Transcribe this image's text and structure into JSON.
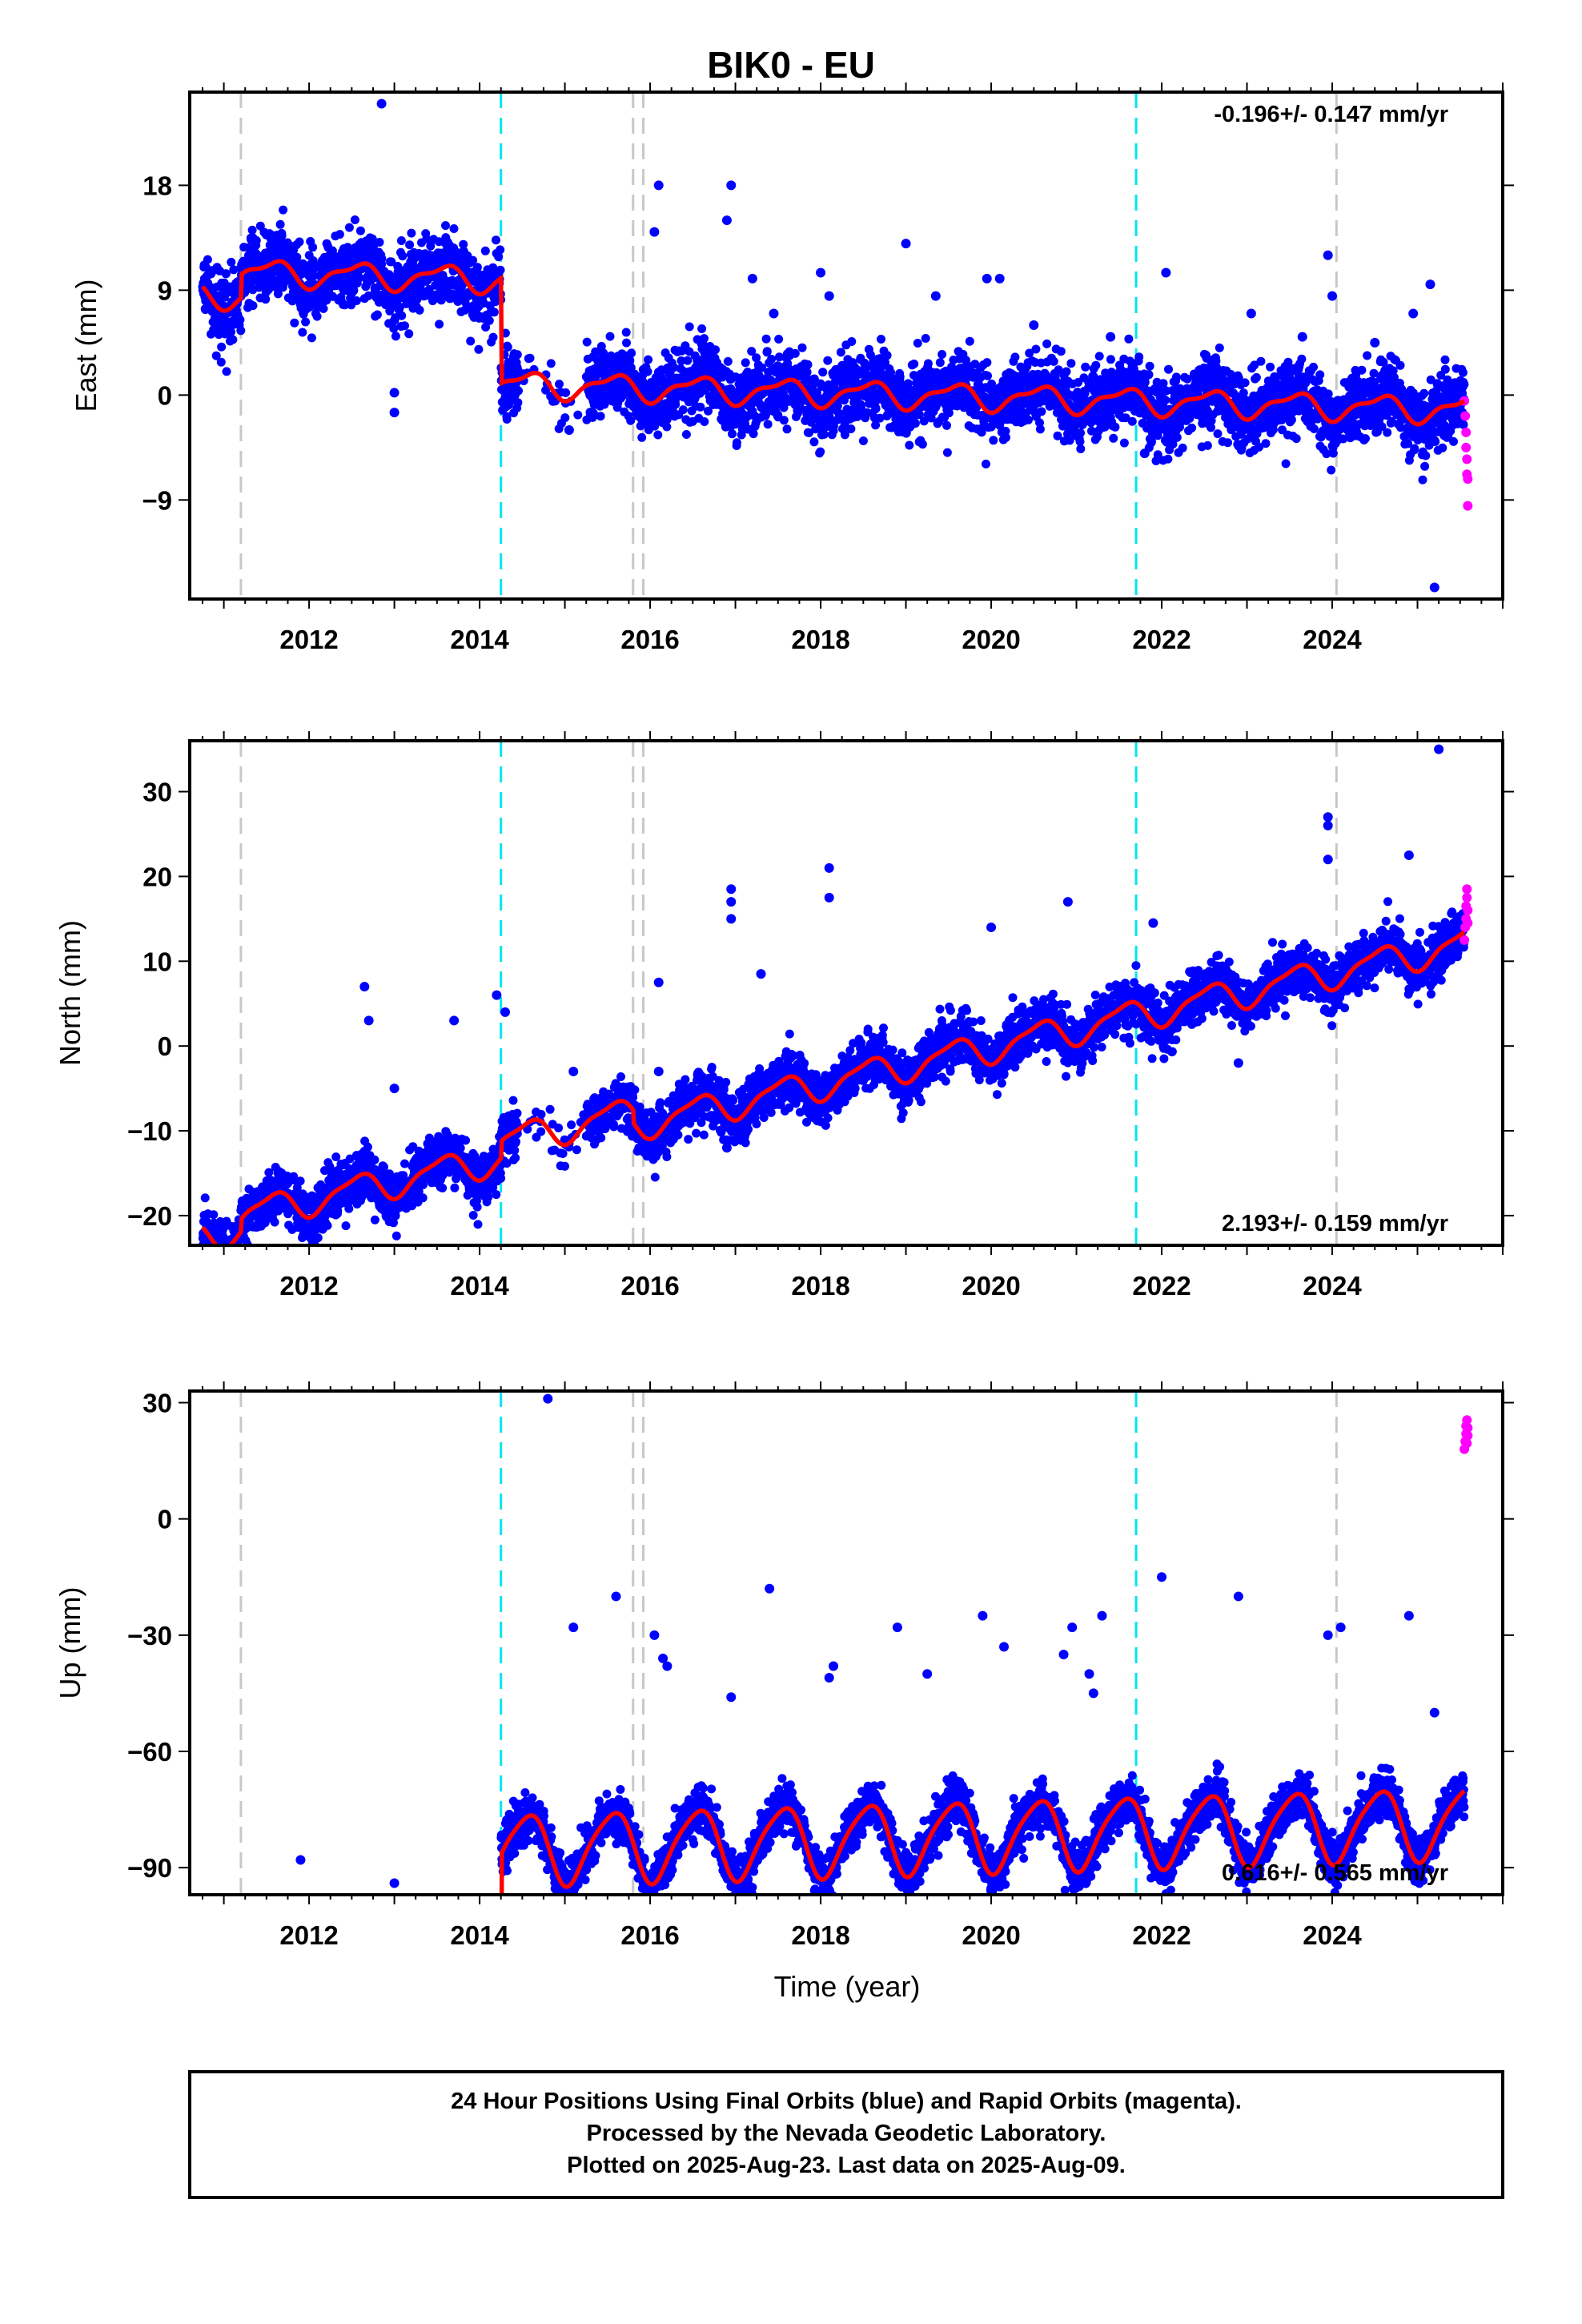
{
  "title": "BIK0 - EU",
  "xlabel": "Time (year)",
  "footer": [
    "24 Hour Positions Using Final Orbits (blue) and Rapid Orbits (magenta).",
    "Processed by the Nevada Geodetic Laboratory.",
    "Plotted on 2025-Aug-23. Last data on 2025-Aug-09."
  ],
  "colors": {
    "final_orbits": "#0000ff",
    "rapid_orbits": "#ff00ff",
    "model": "#ff0000",
    "antenna_change": "#c8c8c8",
    "equipment_change": "#00e5ee"
  },
  "chart_data": [
    {
      "type": "scatter",
      "component": "east",
      "ylabel": "East (mm)",
      "rate_text": "-0.196+/- 0.147 mm/yr",
      "rate_position": "top-right",
      "xlim": [
        2010.6,
        2026.0
      ],
      "ylim": [
        -17.5,
        26
      ],
      "x_ticks": [
        2012,
        2014,
        2016,
        2018,
        2020,
        2022,
        2024
      ],
      "y_ticks": [
        18,
        9,
        0,
        -9
      ],
      "vlines_gray": [
        2011.2,
        2015.8,
        2015.92,
        2024.05
      ],
      "vlines_cyan": [
        2014.25,
        2021.7
      ],
      "offsets": [
        {
          "x": 2011.2,
          "dy": 2.0
        },
        {
          "x": 2014.25,
          "dy": -9.0
        }
      ],
      "model": {
        "t0": 2018.0,
        "base": 0.2,
        "rate": -0.196,
        "amp1": 1.0,
        "amp2": 0.4
      },
      "noise": 1.5,
      "outliers": [
        [
          2012.85,
          25
        ],
        [
          2013.0,
          -1.5
        ],
        [
          2013.0,
          0.2
        ],
        [
          2014.5,
          1.8
        ],
        [
          2015.05,
          -3
        ],
        [
          2016.1,
          18
        ],
        [
          2016.05,
          14
        ],
        [
          2016.95,
          18
        ],
        [
          2016.9,
          15
        ],
        [
          2017.2,
          10
        ],
        [
          2017.45,
          7
        ],
        [
          2018.0,
          10.5
        ],
        [
          2018.1,
          8.5
        ],
        [
          2019.0,
          13
        ],
        [
          2019.35,
          8.5
        ],
        [
          2019.95,
          10
        ],
        [
          2020.1,
          10
        ],
        [
          2020.5,
          6
        ],
        [
          2021.4,
          5
        ],
        [
          2022.05,
          10.5
        ],
        [
          2021.8,
          -5
        ],
        [
          2023.05,
          7
        ],
        [
          2023.65,
          5
        ],
        [
          2023.95,
          12
        ],
        [
          2024.0,
          8.5
        ],
        [
          2024.95,
          7
        ],
        [
          2025.15,
          9.5
        ],
        [
          2025.2,
          -16.5
        ],
        [
          2024.5,
          4.5
        ]
      ],
      "rapid_points": [
        [
          2025.55,
          -0.5
        ],
        [
          2025.56,
          -1.8
        ],
        [
          2025.57,
          -3.2
        ],
        [
          2025.57,
          -4.5
        ],
        [
          2025.58,
          -5.5
        ],
        [
          2025.58,
          -6.8
        ],
        [
          2025.59,
          -7.2
        ],
        [
          2025.59,
          -9.5
        ]
      ]
    },
    {
      "type": "scatter",
      "component": "north",
      "ylabel": "North (mm)",
      "rate_text": "2.193+/- 0.159 mm/yr",
      "rate_position": "bottom-right",
      "xlim": [
        2010.6,
        2026.0
      ],
      "ylim": [
        -23.5,
        36
      ],
      "x_ticks": [
        2012,
        2014,
        2016,
        2018,
        2020,
        2022,
        2024
      ],
      "y_ticks": [
        30,
        20,
        10,
        0,
        -10,
        -20
      ],
      "vlines_gray": [
        2011.2,
        2015.8,
        2015.92,
        2024.05
      ],
      "vlines_cyan": [
        2014.25,
        2021.7
      ],
      "offsets": [
        {
          "x": 2011.2,
          "dy": 1.5
        },
        {
          "x": 2014.25,
          "dy": 2.0
        },
        {
          "x": 2015.8,
          "dy": -1.5
        }
      ],
      "model": {
        "t0": 2018.0,
        "base": -4.5,
        "rate": 2.193,
        "amp1": 1.7,
        "amp2": 0.5
      },
      "noise": 1.5,
      "outliers": [
        [
          2012.65,
          7
        ],
        [
          2012.7,
          3
        ],
        [
          2013.0,
          -5
        ],
        [
          2014.2,
          6
        ],
        [
          2014.3,
          4
        ],
        [
          2013.7,
          3
        ],
        [
          2015.1,
          -3
        ],
        [
          2016.1,
          7.5
        ],
        [
          2016.1,
          -3
        ],
        [
          2016.95,
          18.5
        ],
        [
          2016.95,
          17
        ],
        [
          2016.95,
          15
        ],
        [
          2016.9,
          -12
        ],
        [
          2017.3,
          8.5
        ],
        [
          2018.1,
          21
        ],
        [
          2018.1,
          17.5
        ],
        [
          2020.0,
          14
        ],
        [
          2020.9,
          17
        ],
        [
          2021.9,
          14.5
        ],
        [
          2022.9,
          -2
        ],
        [
          2023.95,
          27
        ],
        [
          2023.95,
          26
        ],
        [
          2023.95,
          22
        ],
        [
          2023.95,
          4
        ],
        [
          2024.9,
          22.5
        ],
        [
          2025.25,
          35
        ]
      ],
      "rapid_points": [
        [
          2025.55,
          12.5
        ],
        [
          2025.56,
          14
        ],
        [
          2025.57,
          15
        ],
        [
          2025.57,
          16.5
        ],
        [
          2025.58,
          17.5
        ],
        [
          2025.58,
          18.5
        ],
        [
          2025.59,
          14.5
        ],
        [
          2025.59,
          16
        ]
      ]
    },
    {
      "type": "scatter",
      "component": "up",
      "ylabel": "Up (mm)",
      "rate_text": "0.616+/- 0.565 mm/yr",
      "rate_position": "bottom-right",
      "xlim": [
        2010.6,
        2026.0
      ],
      "ylim": [
        -97,
        33
      ],
      "x_ticks": [
        2012,
        2014,
        2016,
        2018,
        2020,
        2022,
        2024
      ],
      "y_ticks": [
        30,
        0,
        -30,
        -60,
        -90
      ],
      "vlines_gray": [
        2011.2,
        2015.8,
        2015.92,
        2024.05
      ],
      "vlines_cyan": [
        2014.25,
        2021.7
      ],
      "offsets": [
        {
          "x": 2014.25,
          "dy": 82
        }
      ],
      "model": {
        "t0": 2018.0,
        "base": -83,
        "rate": 0.616,
        "amp1": 9.0,
        "amp2": 1.5
      },
      "noise": 3.0,
      "outliers": [
        [
          2014.8,
          31
        ],
        [
          2015.1,
          -28
        ],
        [
          2015.6,
          -20
        ],
        [
          2016.15,
          -36
        ],
        [
          2016.05,
          -30
        ],
        [
          2016.2,
          -38
        ],
        [
          2016.95,
          -46
        ],
        [
          2017.4,
          -18
        ],
        [
          2018.1,
          -41
        ],
        [
          2018.15,
          -38
        ],
        [
          2018.9,
          -28
        ],
        [
          2019.25,
          -40
        ],
        [
          2019.9,
          -25
        ],
        [
          2020.15,
          -33
        ],
        [
          2020.85,
          -35
        ],
        [
          2020.95,
          -28
        ],
        [
          2021.15,
          -40
        ],
        [
          2021.2,
          -45
        ],
        [
          2021.3,
          -25
        ],
        [
          2022.0,
          -15
        ],
        [
          2022.9,
          -20
        ],
        [
          2023.95,
          -30
        ],
        [
          2024.1,
          -28
        ],
        [
          2024.9,
          -25
        ],
        [
          2025.2,
          -50
        ],
        [
          2013.0,
          -94
        ],
        [
          2011.9,
          -88
        ]
      ],
      "rapid_points": [
        [
          2025.55,
          18
        ],
        [
          2025.56,
          20
        ],
        [
          2025.57,
          22
        ],
        [
          2025.57,
          24
        ],
        [
          2025.58,
          25.5
        ],
        [
          2025.58,
          19.5
        ],
        [
          2025.59,
          21.5
        ],
        [
          2025.59,
          23.5
        ]
      ]
    }
  ]
}
